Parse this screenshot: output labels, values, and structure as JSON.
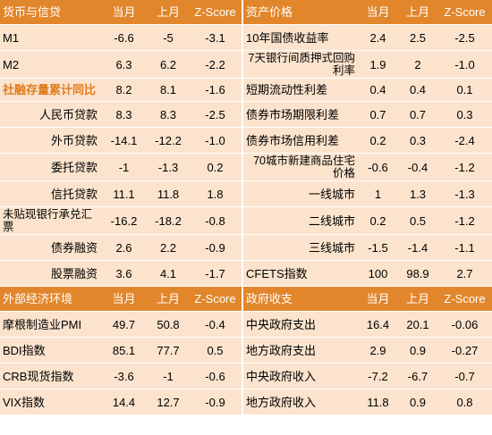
{
  "section1": {
    "left_header": [
      "货币与信贷",
      "当月",
      "上月",
      "Z-Score"
    ],
    "right_header": [
      "资产价格",
      "当月",
      "上月",
      "Z-Score"
    ],
    "rows": [
      {
        "l_label": "M1",
        "l_cur": "-6.6",
        "l_prev": "-5",
        "l_z": "-3.1",
        "r_label": "10年国债收益率",
        "r_cur": "2.4",
        "r_prev": "2.5",
        "r_z": "-2.5"
      },
      {
        "l_label": "M2",
        "l_cur": "6.3",
        "l_prev": "6.2",
        "l_z": "-2.2",
        "r_label": "7天银行间质押式回购利率",
        "r_cur": "1.9",
        "r_prev": "2",
        "r_z": "-1.0"
      },
      {
        "l_label": "社融存量累计同比",
        "l_cur": "8.2",
        "l_prev": "8.1",
        "l_z": "-1.6",
        "r_label": "短期流动性利差",
        "r_cur": "0.4",
        "r_prev": "0.4",
        "r_z": "0.1"
      },
      {
        "l_label": "人民币贷款",
        "l_cur": "8.3",
        "l_prev": "8.3",
        "l_z": "-2.5",
        "r_label": "债券市场期限利差",
        "r_cur": "0.7",
        "r_prev": "0.7",
        "r_z": "0.3"
      },
      {
        "l_label": "外币贷款",
        "l_cur": "-14.1",
        "l_prev": "-12.2",
        "l_z": "-1.0",
        "r_label": "债券市场信用利差",
        "r_cur": "0.2",
        "r_prev": "0.3",
        "r_z": "-2.4"
      },
      {
        "l_label": "委托贷款",
        "l_cur": "-1",
        "l_prev": "-1.3",
        "l_z": "0.2",
        "r_label": "70城市新建商品住宅价格",
        "r_cur": "-0.6",
        "r_prev": "-0.4",
        "r_z": "-1.2"
      },
      {
        "l_label": "信托贷款",
        "l_cur": "11.1",
        "l_prev": "11.8",
        "l_z": "1.8",
        "r_label": "一线城市",
        "r_cur": "1",
        "r_prev": "1.3",
        "r_z": "-1.3"
      },
      {
        "l_label": "未贴现银行承兑汇票",
        "l_cur": "-16.2",
        "l_prev": "-18.2",
        "l_z": "-0.8",
        "r_label": "二线城市",
        "r_cur": "0.2",
        "r_prev": "0.5",
        "r_z": "-1.2"
      },
      {
        "l_label": "债券融资",
        "l_cur": "2.6",
        "l_prev": "2.2",
        "l_z": "-0.9",
        "r_label": "三线城市",
        "r_cur": "-1.5",
        "r_prev": "-1.4",
        "r_z": "-1.1"
      },
      {
        "l_label": "股票融资",
        "l_cur": "3.6",
        "l_prev": "4.1",
        "l_z": "-1.7",
        "r_label": "CFETS指数",
        "r_cur": "100",
        "r_prev": "98.9",
        "r_z": "2.7"
      }
    ]
  },
  "section2": {
    "left_header": [
      "外部经济环境",
      "当月",
      "上月",
      "Z-Score"
    ],
    "right_header": [
      "政府收支",
      "当月",
      "上月",
      "Z-Score"
    ],
    "rows": [
      {
        "l_label": "摩根制造业PMI",
        "l_cur": "49.7",
        "l_prev": "50.8",
        "l_z": "-0.4",
        "r_label": "中央政府支出",
        "r_cur": "16.4",
        "r_prev": "20.1",
        "r_z": "-0.06"
      },
      {
        "l_label": "BDI指数",
        "l_cur": "85.1",
        "l_prev": "77.7",
        "l_z": "0.5",
        "r_label": "地方政府支出",
        "r_cur": "2.9",
        "r_prev": "0.9",
        "r_z": "-0.27"
      },
      {
        "l_label": "CRB现货指数",
        "l_cur": "-3.6",
        "l_prev": "-1",
        "l_z": "-0.6",
        "r_label": "中央政府收入",
        "r_cur": "-7.2",
        "r_prev": "-6.7",
        "r_z": "-0.7"
      },
      {
        "l_label": "VIX指数",
        "l_cur": "14.4",
        "l_prev": "12.7",
        "l_z": "-0.9",
        "r_label": "地方政府收入",
        "r_cur": "11.8",
        "r_prev": "0.9",
        "r_z": "0.8"
      }
    ]
  }
}
